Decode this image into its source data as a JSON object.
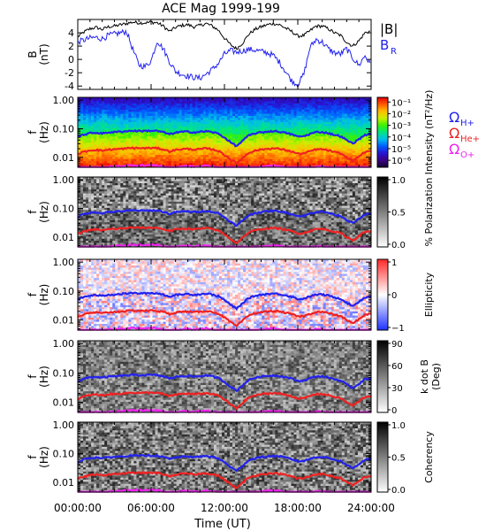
{
  "figure": {
    "title": "ACE Mag 1999-199",
    "x_axis_label": "Time (UT)",
    "x_tick_labels": [
      "00:00:00",
      "06:00:00",
      "12:00:00",
      "18:00:00",
      "24:00:00"
    ]
  },
  "legend": {
    "top": [
      "|B|",
      "B",
      "R"
    ],
    "gyro": [
      {
        "sym": "Ω",
        "sub": "H+",
        "color": "#2222ee"
      },
      {
        "sym": "Ω",
        "sub": "He+",
        "color": "#ee2222"
      },
      {
        "sym": "Ω",
        "sub": "O+",
        "color": "#ee22ee"
      }
    ]
  },
  "colors": {
    "absB": "#000000",
    "BR": "#2222ee",
    "H": "#2222ee",
    "He": "#ee2222",
    "O": "#ee22ee"
  },
  "chart_data": [
    {
      "type": "line",
      "panel": "magnetic-field",
      "ylabel_main": "B",
      "ylabel_unit": "(nT)",
      "x_range_hours": [
        0,
        24
      ],
      "ylim": [
        -4.5,
        6
      ],
      "y_ticks": [
        -4,
        -2,
        0,
        2,
        4
      ],
      "series": [
        {
          "name": "|B|",
          "hours": [
            0,
            0.5,
            1,
            1.5,
            2,
            2.5,
            3,
            3.5,
            4,
            4.5,
            5,
            5.5,
            6,
            6.5,
            7,
            7.5,
            8,
            8.5,
            9,
            9.5,
            10,
            10.5,
            11,
            11.5,
            12,
            12.5,
            13,
            13.5,
            14,
            14.5,
            15,
            15.5,
            16,
            16.5,
            17,
            17.5,
            18,
            18.5,
            19,
            19.5,
            20,
            20.5,
            21,
            21.5,
            22,
            22.5,
            23,
            23.5,
            24
          ],
          "values": [
            3.4,
            4.1,
            4.6,
            4.8,
            4.5,
            4.9,
            5.0,
            5.2,
            5.4,
            5.6,
            5.5,
            5.5,
            5.6,
            5.5,
            5.0,
            4.2,
            4.8,
            5.1,
            5.2,
            4.9,
            5.1,
            5.4,
            5.0,
            4.4,
            3.2,
            2.2,
            1.6,
            2.5,
            3.8,
            4.5,
            4.9,
            5.2,
            5.4,
            5.2,
            4.7,
            4.2,
            3.5,
            3.6,
            4.3,
            5.0,
            5.0,
            4.6,
            4.0,
            3.6,
            2.6,
            2.0,
            2.8,
            4.0,
            4.3
          ]
        },
        {
          "name": "BR",
          "hours": [
            0,
            0.5,
            1,
            1.5,
            2,
            2.5,
            3,
            3.5,
            4,
            4.5,
            5,
            5.5,
            6,
            6.5,
            7,
            7.5,
            8,
            8.5,
            9,
            9.5,
            10,
            10.5,
            11,
            11.5,
            12,
            12.5,
            13,
            13.5,
            14,
            14.5,
            15,
            15.5,
            16,
            16.5,
            17,
            17.5,
            18,
            18.5,
            19,
            19.5,
            20,
            20.5,
            21,
            21.5,
            22,
            22.5,
            23,
            23.5,
            24
          ],
          "values": [
            2.6,
            2.9,
            3.2,
            3.3,
            3.1,
            3.6,
            3.8,
            4.0,
            4.2,
            1.5,
            -0.8,
            -1.1,
            -0.2,
            2.8,
            1.6,
            -0.3,
            -1.8,
            -2.2,
            -2.5,
            -2.7,
            -2.8,
            -2.2,
            -1.5,
            -0.6,
            0.8,
            1.3,
            1.1,
            1.3,
            1.5,
            1.4,
            1.2,
            1.0,
            0.6,
            -0.4,
            -1.8,
            -3.2,
            -3.8,
            -2.2,
            1.8,
            3.0,
            2.6,
            1.6,
            1.0,
            0.8,
            1.6,
            0.2,
            -0.9,
            0.6,
            -1.0
          ]
        }
      ]
    },
    {
      "type": "heatmap",
      "panel": "intensity",
      "ylabel_main": "f",
      "ylabel_unit": "(Hz)",
      "y_scale": "log",
      "ylim": [
        0.0045,
        1.25
      ],
      "y_tick_labels": [
        "0.01",
        "0.10",
        "1.00"
      ],
      "colorbar_label": "Intensity (nT²/Hz)",
      "colorbar_ticks": [
        "10⁻¹",
        "10⁻²",
        "10⁻³",
        "10⁻⁴",
        "10⁻⁵",
        "10⁻⁶"
      ],
      "colorbar_range_log": [
        -6.6,
        -0.6
      ]
    },
    {
      "type": "heatmap",
      "panel": "polarization",
      "ylabel_main": "f",
      "ylabel_unit": "(Hz)",
      "y_scale": "log",
      "y_tick_labels": [
        "0.01",
        "0.10",
        "1.00"
      ],
      "colorbar_label": "% Polarization",
      "colorbar_ticks": [
        "1.0",
        "0.5",
        "0.0"
      ],
      "colorbar_range": [
        0,
        1
      ]
    },
    {
      "type": "heatmap",
      "panel": "ellipticity",
      "ylabel_main": "f",
      "ylabel_unit": "(Hz)",
      "y_scale": "log",
      "y_tick_labels": [
        "0.01",
        "0.10",
        "1.00"
      ],
      "colorbar_label": "Ellipticity",
      "colorbar_ticks": [
        "1",
        "0",
        "−1"
      ],
      "colorbar_range": [
        -1,
        1
      ]
    },
    {
      "type": "heatmap",
      "panel": "k-dot-b",
      "ylabel_main": "f",
      "ylabel_unit": "(Hz)",
      "y_scale": "log",
      "y_tick_labels": [
        "0.01",
        "0.10",
        "1.00"
      ],
      "colorbar_label_1": "k dot B",
      "colorbar_label_2": "(Deg)",
      "colorbar_ticks": [
        "90",
        "60",
        "30",
        "0"
      ],
      "colorbar_range": [
        0,
        90
      ]
    },
    {
      "type": "heatmap",
      "panel": "coherency",
      "ylabel_main": "f",
      "ylabel_unit": "(Hz)",
      "y_scale": "log",
      "y_tick_labels": [
        "0.01",
        "0.10",
        "1.00"
      ],
      "colorbar_label": "Coherency",
      "colorbar_ticks": [
        "1.0",
        "0.5",
        "0.0"
      ],
      "colorbar_range": [
        0,
        1
      ]
    }
  ]
}
